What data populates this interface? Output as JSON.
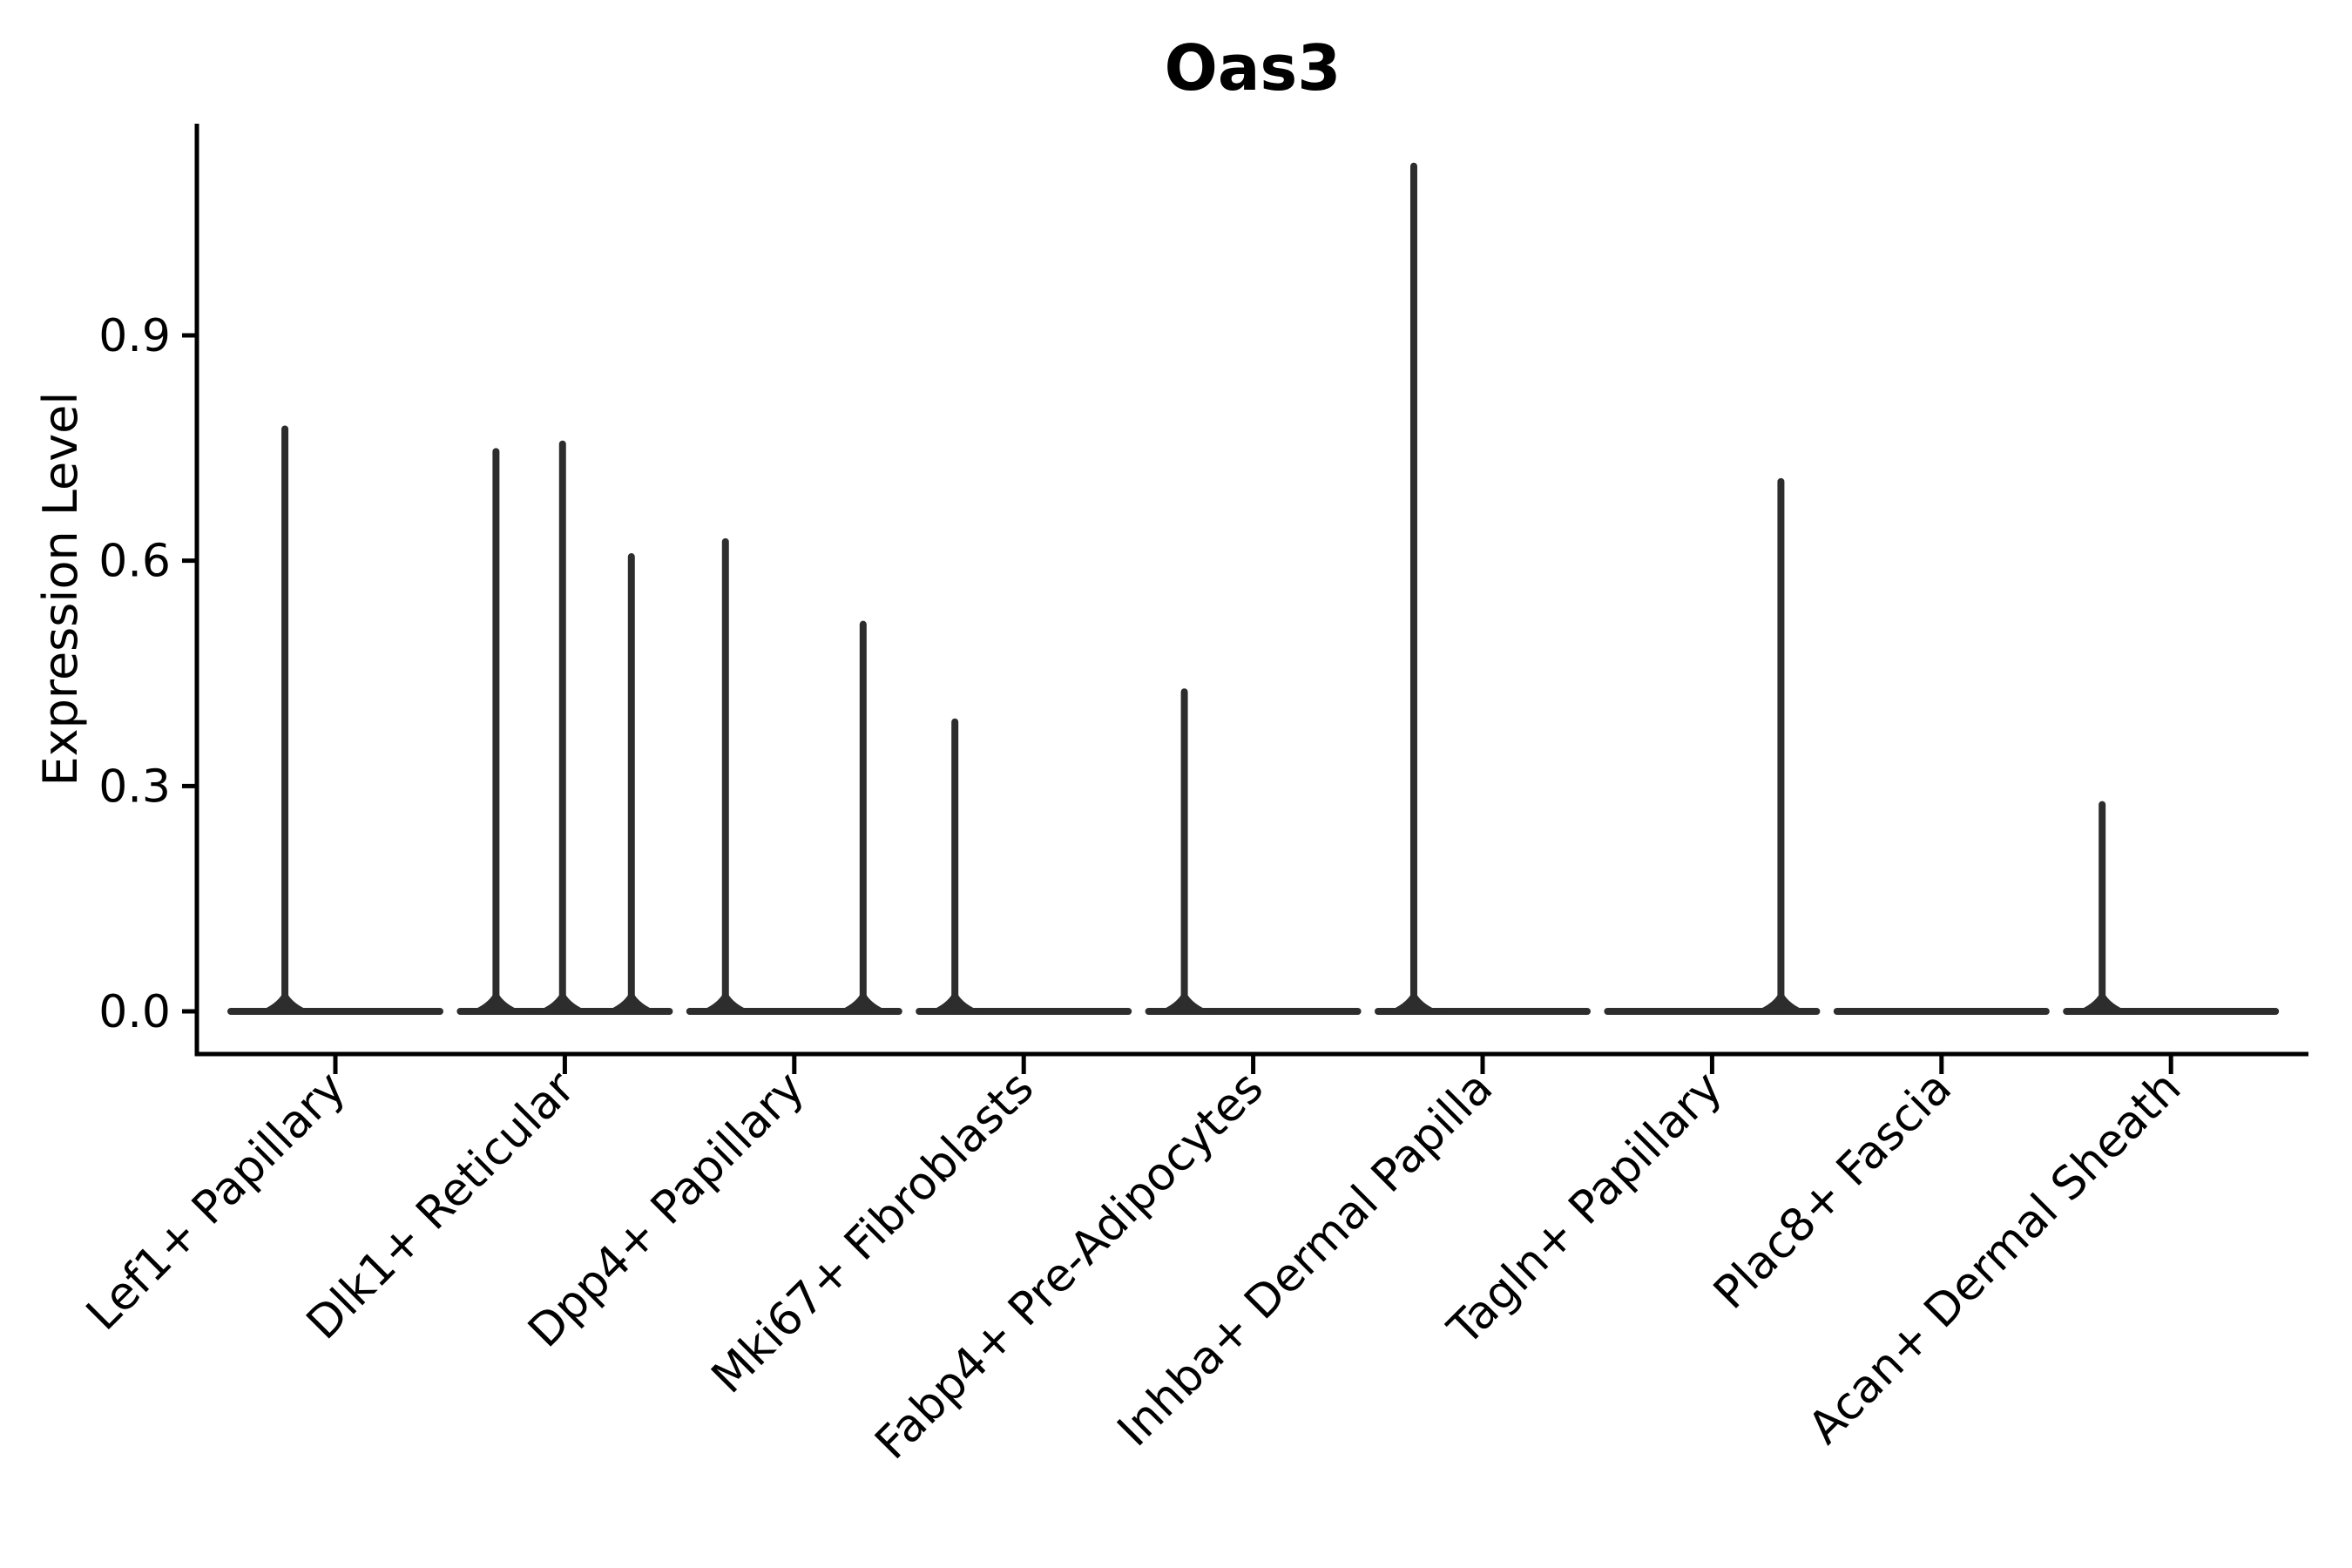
{
  "figure": {
    "title": "Oas3",
    "y_axis_title": "Expression Level"
  },
  "colors": {
    "background": "#ffffff",
    "axis": "#000000",
    "text": "#000000",
    "violin": "#2d2d2d"
  },
  "chart_data": {
    "type": "violin",
    "title": "Oas3",
    "xlabel": "",
    "ylabel": "Expression Level",
    "ylim": [
      -0.057,
      1.183
    ],
    "yticks": [
      0.0,
      0.3,
      0.6,
      0.9
    ],
    "ytick_labels": [
      "0.0",
      "0.3",
      "0.6",
      "0.9"
    ],
    "grid": false,
    "legend": "none",
    "x_label_rotation_deg": 45,
    "categories": [
      "Lef1+ Papillary",
      "Dlk1+ Reticular",
      "Dpp4+ Papillary",
      "Mki67+ Fibroblasts",
      "Fabp4+ Pre-Adipocytes",
      "Inhba+ Dermal Papilla",
      "Tagln+ Papillary",
      "Plac8+ Fascia",
      "Acan+ Dermal Sheath"
    ],
    "series": [
      {
        "name": "Lef1+ Papillary",
        "baseline_value": 0.0,
        "base_width_frac": 0.91,
        "max": 0.78,
        "spikes": [
          {
            "pos": -0.22,
            "value": 0.78
          }
        ]
      },
      {
        "name": "Dlk1+ Reticular",
        "baseline_value": 0.0,
        "base_width_frac": 0.91,
        "max": 0.76,
        "spikes": [
          {
            "pos": -0.3,
            "value": 0.75
          },
          {
            "pos": -0.01,
            "value": 0.76
          },
          {
            "pos": 0.29,
            "value": 0.61
          }
        ]
      },
      {
        "name": "Dpp4+ Papillary",
        "baseline_value": 0.0,
        "base_width_frac": 0.91,
        "max": 0.63,
        "spikes": [
          {
            "pos": -0.3,
            "value": 0.63
          },
          {
            "pos": 0.3,
            "value": 0.52
          }
        ]
      },
      {
        "name": "Mki67+ Fibroblasts",
        "baseline_value": 0.0,
        "base_width_frac": 0.91,
        "max": 0.39,
        "spikes": [
          {
            "pos": -0.3,
            "value": 0.39
          }
        ]
      },
      {
        "name": "Fabp4+ Pre-Adipocytes",
        "baseline_value": 0.0,
        "base_width_frac": 0.91,
        "max": 0.43,
        "spikes": [
          {
            "pos": -0.3,
            "value": 0.43
          }
        ]
      },
      {
        "name": "Inhba+ Dermal Papilla",
        "baseline_value": 0.0,
        "base_width_frac": 0.91,
        "max": 1.13,
        "spikes": [
          {
            "pos": -0.3,
            "value": 1.13
          }
        ]
      },
      {
        "name": "Tagln+ Papillary",
        "baseline_value": 0.0,
        "base_width_frac": 0.91,
        "max": 0.71,
        "spikes": [
          {
            "pos": 0.3,
            "value": 0.71
          }
        ]
      },
      {
        "name": "Plac8+ Fascia",
        "baseline_value": 0.0,
        "base_width_frac": 0.91,
        "max": 0.0,
        "spikes": []
      },
      {
        "name": "Acan+ Dermal Sheath",
        "baseline_value": 0.0,
        "base_width_frac": 0.91,
        "max": 0.28,
        "spikes": [
          {
            "pos": -0.3,
            "value": 0.28
          }
        ]
      }
    ]
  }
}
